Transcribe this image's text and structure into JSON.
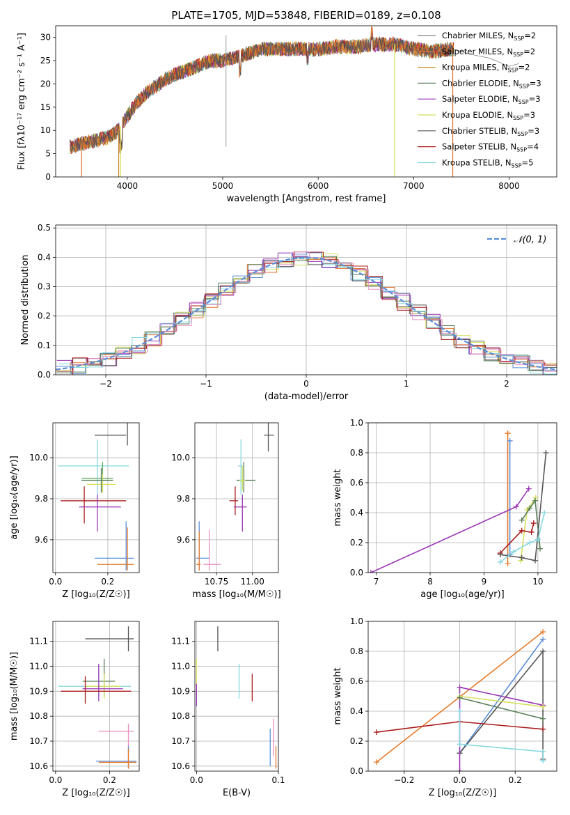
{
  "colors": {
    "Chabrier MILES": "#808080",
    "Salpeter MILES": "#e0712c",
    "Kroupa MILES": "#c98a2a",
    "Chabrier ELODIE": "#5a7f5a",
    "Salpeter ELODIE": "#9a36b5",
    "Kroupa ELODIE": "#d5e05a",
    "Chabrier STELIB": "#555555",
    "Salpeter STELIB": "#aa1a1a",
    "Kroupa STELIB": "#86d8e0",
    "blue": "#5b8ed6",
    "pink": "#e88fc0",
    "green": "#5fa95f",
    "orange": "#e57a2a"
  },
  "chart_data": [
    {
      "id": "spectrum",
      "type": "line",
      "title": "PLATE=1705, MJD=53848, FIBERID=0189, z=0.108",
      "xlabel": "wavelength [Angstrom, rest frame]",
      "ylabel": "Flux [fλ10⁻¹⁷ erg cm⁻² s⁻¹ A⁻¹]",
      "xlim": [
        3250,
        8500
      ],
      "ylim": [
        0,
        32.5
      ],
      "xticks": [
        4000,
        5000,
        6000,
        7000,
        8000
      ],
      "yticks": [
        0,
        5,
        10,
        15,
        20,
        25,
        30
      ],
      "legend_position": "top-right",
      "legend": [
        {
          "label": "Chabrier MILES, N",
          "sub": "SSP",
          "suffix": "=2",
          "color": "#808080"
        },
        {
          "label": "Salpeter MILES, N",
          "sub": "SSP",
          "suffix": "=2",
          "color": "#e0712c"
        },
        {
          "label": "Kroupa MILES, N",
          "sub": "SSP",
          "suffix": "=2",
          "color": "#c98a2a"
        },
        {
          "label": "Chabrier ELODIE, N",
          "sub": "SSP",
          "suffix": "=3",
          "color": "#5a7f5a"
        },
        {
          "label": "Salpeter ELODIE, N",
          "sub": "SSP",
          "suffix": "=3",
          "color": "#9a36b5"
        },
        {
          "label": "Kroupa ELODIE, N",
          "sub": "SSP",
          "suffix": "=3",
          "color": "#d5e05a"
        },
        {
          "label": "Chabrier STELIB, N",
          "sub": "SSP",
          "suffix": "=3",
          "color": "#555555"
        },
        {
          "label": "Salpeter STELIB, N",
          "sub": "SSP",
          "suffix": "=4",
          "color": "#aa1a1a"
        },
        {
          "label": "Kroupa STELIB, N",
          "sub": "SSP",
          "suffix": "=5",
          "color": "#86d8e0"
        }
      ],
      "continuum": [
        [
          3400,
          6.5
        ],
        [
          3600,
          7.5
        ],
        [
          3800,
          8.5
        ],
        [
          3900,
          10
        ],
        [
          4000,
          13
        ],
        [
          4100,
          16
        ],
        [
          4200,
          18
        ],
        [
          4300,
          19.5
        ],
        [
          4400,
          21
        ],
        [
          4500,
          22
        ],
        [
          4700,
          23.5
        ],
        [
          4800,
          24.5
        ],
        [
          4900,
          25
        ],
        [
          5000,
          25
        ],
        [
          5100,
          25.5
        ],
        [
          5200,
          26
        ],
        [
          5400,
          27.5
        ],
        [
          5600,
          27.5
        ],
        [
          5800,
          27.5
        ],
        [
          6000,
          27.5
        ],
        [
          6200,
          28
        ],
        [
          6400,
          28
        ],
        [
          6600,
          28.5
        ],
        [
          6800,
          28.5
        ],
        [
          7000,
          27.5
        ],
        [
          7200,
          27
        ],
        [
          7400,
          27.5
        ]
      ],
      "tail": [
        [
          7400,
          27.5
        ],
        [
          7600,
          26.5
        ],
        [
          7800,
          26
        ],
        [
          8000,
          24
        ],
        [
          8100,
          24.5
        ]
      ],
      "dips": [
        {
          "x": 3520,
          "color": "#e0712c"
        },
        {
          "x": 3910,
          "color": "#c98a2a"
        },
        {
          "x": 3930,
          "color": "#d5e05a"
        },
        {
          "x": 6800,
          "color": "#d5e05a"
        },
        {
          "x": 7410,
          "color": "#e0712c"
        }
      ],
      "spike": {
        "x": 5035,
        "low": 6.5,
        "high": 30.5
      }
    },
    {
      "id": "residuals",
      "type": "line",
      "xlabel": "(data-model)/error",
      "ylabel": "Normed distribution",
      "xlim": [
        -2.5,
        2.5
      ],
      "ylim": [
        0,
        0.51
      ],
      "xticks": [
        -2,
        -1,
        0,
        1,
        2
      ],
      "xtick_labels": [
        "−2",
        "−1",
        "0",
        "1",
        "2"
      ],
      "yticks": [
        0.0,
        0.1,
        0.2,
        0.3,
        0.4,
        0.5
      ],
      "ytick_labels": [
        "0.0",
        "0.1",
        "0.2",
        "0.3",
        "0.4",
        "0.5"
      ],
      "legend_position": "top-right",
      "legend_label": "𝒩(0, 1)",
      "bins": 50,
      "hist_colors": [
        "#e0712c",
        "#5b8ed6",
        "#5a7f5a",
        "#9a36b5",
        "#d5e05a",
        "#555555",
        "#aa1a1a",
        "#86d8e0",
        "#e88fc0"
      ]
    },
    {
      "id": "age-vs-Z",
      "type": "scatter",
      "xlabel": "Z [log₁₀(Z/Z☉)]",
      "ylabel": "age  [log₁₀(age/yr)]",
      "xlim": [
        -0.01,
        0.32
      ],
      "ylim": [
        9.44,
        10.17
      ],
      "xticks": [
        0.0,
        0.2
      ],
      "xtick_labels": [
        "0.0",
        "0.2"
      ],
      "yticks": [
        9.6,
        9.8,
        10.0
      ],
      "ytick_labels": [
        "9.6",
        "9.8",
        "10.0"
      ],
      "points": [
        {
          "x": 0.275,
          "y": 10.11,
          "xerr": [
            0.15,
            0.27
          ],
          "yerr": [
            10.06,
            10.17
          ],
          "color": "#555555"
        },
        {
          "x": 0.16,
          "y": 9.96,
          "xerr": [
            0.01,
            0.28
          ],
          "yerr": [
            9.82,
            10.09
          ],
          "color": "#86d8e0"
        },
        {
          "x": 0.18,
          "y": 9.9,
          "xerr": [
            0.1,
            0.22
          ],
          "yerr": [
            9.83,
            9.98
          ],
          "color": "#5fa95f"
        },
        {
          "x": 0.18,
          "y": 9.87,
          "xerr": [
            0.12,
            0.23
          ],
          "yerr": [
            9.83,
            9.92
          ],
          "color": "#d5e05a"
        },
        {
          "x": 0.175,
          "y": 9.89,
          "xerr": [
            0.1,
            0.22
          ],
          "yerr": [
            9.83,
            9.95
          ],
          "color": "#5a7f5a"
        },
        {
          "x": 0.11,
          "y": 9.79,
          "xerr": [
            0.02,
            0.27
          ],
          "yerr": [
            9.68,
            9.86
          ],
          "color": "#aa1a1a"
        },
        {
          "x": 0.16,
          "y": 9.76,
          "xerr": [
            0.09,
            0.25
          ],
          "yerr": [
            9.64,
            9.82
          ],
          "color": "#9a36b5"
        },
        {
          "x": 0.27,
          "y": 9.51,
          "xerr": [
            0.15,
            0.3
          ],
          "yerr": [
            9.45,
            9.69
          ],
          "color": "#5b8ed6"
        },
        {
          "x": 0.275,
          "y": 9.48,
          "xerr": [
            0.16,
            0.3
          ],
          "yerr": [
            9.45,
            9.66
          ],
          "color": "#e57a2a"
        }
      ]
    },
    {
      "id": "age-vs-mass",
      "type": "scatter",
      "xlabel": "mass [log₁₀(M/M☉)]",
      "ylabel": "",
      "xlim": [
        10.6,
        11.18
      ],
      "ylim": [
        9.44,
        10.17
      ],
      "xticks": [
        10.75,
        11.0
      ],
      "xtick_labels": [
        "10.75",
        "11.00"
      ],
      "yticks": [
        9.6,
        9.8,
        10.0
      ],
      "ytick_labels": [
        "9.6",
        "9.8",
        "10.0"
      ],
      "points": [
        {
          "x": 11.11,
          "y": 10.11,
          "xerr": [
            11.08,
            11.15
          ],
          "yerr": [
            10.03,
            10.17
          ],
          "color": "#555555"
        },
        {
          "x": 10.92,
          "y": 9.96,
          "xerr": [
            10.9,
            10.93
          ],
          "yerr": [
            9.82,
            10.09
          ],
          "color": "#86d8e0"
        },
        {
          "x": 10.94,
          "y": 9.89,
          "xerr": [
            10.89,
            11.02
          ],
          "yerr": [
            9.83,
            9.98
          ],
          "color": "#5a7f5a"
        },
        {
          "x": 10.93,
          "y": 9.89,
          "xerr": [
            10.91,
            10.95
          ],
          "yerr": [
            9.84,
            9.96
          ],
          "color": "#d5e05a"
        },
        {
          "x": 10.88,
          "y": 9.79,
          "xerr": [
            10.84,
            10.9
          ],
          "yerr": [
            9.72,
            9.86
          ],
          "color": "#aa1a1a"
        },
        {
          "x": 10.93,
          "y": 9.76,
          "xerr": [
            10.87,
            10.96
          ],
          "yerr": [
            9.64,
            9.82
          ],
          "color": "#9a36b5"
        },
        {
          "x": 10.63,
          "y": 9.51,
          "xerr": [
            10.61,
            10.7
          ],
          "yerr": [
            9.45,
            9.69
          ],
          "color": "#5b8ed6"
        },
        {
          "x": 10.7,
          "y": 9.48,
          "xerr": [
            10.66,
            10.78
          ],
          "yerr": [
            9.45,
            9.65
          ],
          "color": "#e88fc0"
        },
        {
          "x": 10.63,
          "y": 9.48,
          "xerr": [
            10.61,
            10.64
          ],
          "yerr": [
            9.45,
            9.64
          ],
          "color": "#e57a2a"
        }
      ]
    },
    {
      "id": "weight-vs-age",
      "type": "line",
      "xlabel": "age  [log₁₀(age/yr)]",
      "ylabel": "mass weight",
      "xlim": [
        6.85,
        10.35
      ],
      "ylim": [
        0,
        1.0
      ],
      "xticks": [
        7,
        8,
        9,
        10
      ],
      "yticks": [
        0.0,
        0.2,
        0.4,
        0.6,
        0.8,
        1.0
      ],
      "ytick_labels": [
        "0.0",
        "0.2",
        "0.4",
        "0.6",
        "0.8",
        "1.0"
      ],
      "series": [
        {
          "color": "#e57a2a",
          "x": [
            9.44,
            9.44,
            9.44
          ],
          "y": [
            0.93,
            0.06,
            0.93
          ]
        },
        {
          "color": "#5b8ed6",
          "x": [
            9.48,
            9.48
          ],
          "y": [
            0.88,
            0.12
          ]
        },
        {
          "color": "#9a36b5",
          "x": [
            6.9,
            9.6,
            9.83
          ],
          "y": [
            0.0,
            0.44,
            0.56
          ]
        },
        {
          "color": "#d5e05a",
          "x": [
            9.68,
            9.8,
            9.96
          ],
          "y": [
            0.08,
            0.42,
            0.5
          ]
        },
        {
          "color": "#5a7f5a",
          "x": [
            9.7,
            9.85,
            9.95,
            10.04
          ],
          "y": [
            0.35,
            0.43,
            0.48,
            0.16
          ]
        },
        {
          "color": "#aa1a1a",
          "x": [
            9.3,
            9.7,
            9.88,
            9.92
          ],
          "y": [
            0.13,
            0.28,
            0.27,
            0.33
          ]
        },
        {
          "color": "#555555",
          "x": [
            9.3,
            9.7,
            9.95,
            10.15
          ],
          "y": [
            0.12,
            0.1,
            0.08,
            0.8
          ]
        },
        {
          "color": "#86d8e0",
          "x": [
            9.3,
            9.55,
            9.85,
            10.0,
            10.12
          ],
          "y": [
            0.07,
            0.14,
            0.2,
            0.22,
            0.4
          ]
        }
      ]
    },
    {
      "id": "mass-vs-Z",
      "type": "scatter",
      "xlabel": "Z [log₁₀(Z/Z☉)]",
      "ylabel": "mass [log₁₀(M/M☉)]",
      "xlim": [
        -0.01,
        0.31
      ],
      "ylim": [
        10.58,
        11.18
      ],
      "xticks": [
        0.0,
        0.2
      ],
      "xtick_labels": [
        "0.0",
        "0.2"
      ],
      "yticks": [
        10.6,
        10.7,
        10.8,
        10.9,
        11.0,
        11.1
      ],
      "ytick_labels": [
        "10.6",
        "10.7",
        "10.8",
        "10.9",
        "11.0",
        "11.1"
      ],
      "points": [
        {
          "x": 0.27,
          "y": 11.11,
          "xerr": [
            0.11,
            0.29
          ],
          "yerr": [
            11.06,
            11.16
          ],
          "color": "#555555"
        },
        {
          "x": 0.18,
          "y": 10.94,
          "xerr": [
            0.1,
            0.22
          ],
          "yerr": [
            10.88,
            11.03
          ],
          "color": "#5a7f5a"
        },
        {
          "x": 0.16,
          "y": 10.92,
          "xerr": [
            0.01,
            0.28
          ],
          "yerr": [
            10.88,
            11.0
          ],
          "color": "#86d8e0"
        },
        {
          "x": 0.18,
          "y": 10.92,
          "xerr": [
            0.11,
            0.24
          ],
          "yerr": [
            10.87,
            10.97
          ],
          "color": "#d5e05a"
        },
        {
          "x": 0.16,
          "y": 10.91,
          "xerr": [
            0.1,
            0.25
          ],
          "yerr": [
            10.86,
            11.01
          ],
          "color": "#9a36b5"
        },
        {
          "x": 0.11,
          "y": 10.9,
          "xerr": [
            0.02,
            0.28
          ],
          "yerr": [
            10.85,
            10.96
          ],
          "color": "#aa1a1a"
        },
        {
          "x": 0.27,
          "y": 10.74,
          "xerr": [
            0.16,
            0.29
          ],
          "yerr": [
            10.65,
            10.77
          ],
          "color": "#e88fc0"
        },
        {
          "x": 0.27,
          "y": 10.62,
          "xerr": [
            0.15,
            0.3
          ],
          "yerr": [
            10.59,
            10.68
          ],
          "color": "#5b8ed6"
        },
        {
          "x": 0.27,
          "y": 10.615,
          "xerr": [
            0.16,
            0.3
          ],
          "yerr": [
            10.59,
            10.67
          ],
          "color": "#e57a2a"
        }
      ]
    },
    {
      "id": "mass-vs-EBV",
      "type": "scatter",
      "xlabel": "E(B-V)",
      "ylabel": "",
      "xlim": [
        -0.002,
        0.1
      ],
      "ylim": [
        10.58,
        11.18
      ],
      "xticks": [
        0.0,
        0.1
      ],
      "xtick_labels": [
        "0.0",
        "0.1"
      ],
      "yticks": [
        10.6,
        10.7,
        10.8,
        10.9,
        11.0,
        11.1
      ],
      "ytick_labels": [
        "10.6",
        "10.7",
        "10.8",
        "10.9",
        "11.0",
        "11.1"
      ],
      "points": [
        {
          "x": 0.026,
          "y": 11.11,
          "yerr": [
            11.06,
            11.16
          ],
          "color": "#555555"
        },
        {
          "x": 0.0,
          "y": 10.95,
          "yerr": [
            10.88,
            11.03
          ],
          "color": "#d5e05a"
        },
        {
          "x": 0.0,
          "y": 10.9,
          "yerr": [
            10.84,
            10.93
          ],
          "color": "#9a36b5"
        },
        {
          "x": 0.052,
          "y": 10.94,
          "yerr": [
            10.87,
            11.01
          ],
          "color": "#86d8e0"
        },
        {
          "x": 0.068,
          "y": 10.91,
          "yerr": [
            10.86,
            10.97
          ],
          "color": "#aa1a1a"
        },
        {
          "x": 0.09,
          "y": 10.72,
          "yerr": [
            10.6,
            10.75
          ],
          "color": "#5b8ed6"
        },
        {
          "x": 0.094,
          "y": 10.73,
          "yerr": [
            10.64,
            10.79
          ],
          "color": "#e88fc0"
        },
        {
          "x": 0.097,
          "y": 10.64,
          "yerr": [
            10.59,
            10.68
          ],
          "color": "#e57a2a"
        }
      ]
    },
    {
      "id": "weight-vs-Z",
      "type": "line",
      "xlabel": "Z [log₁₀(Z/Z☉)]",
      "ylabel": "mass weight",
      "xlim": [
        -0.33,
        0.35
      ],
      "ylim": [
        0,
        1.0
      ],
      "xticks": [
        -0.2,
        0.0,
        0.2
      ],
      "xtick_labels": [
        "−0.2",
        "0.0",
        "0.2"
      ],
      "yticks": [
        0.0,
        0.2,
        0.4,
        0.6,
        0.8,
        1.0
      ],
      "ytick_labels": [
        "0.0",
        "0.2",
        "0.4",
        "0.6",
        "0.8",
        "1.0"
      ],
      "series": [
        {
          "color": "#e57a2a",
          "x": [
            -0.3,
            0.3
          ],
          "y": [
            0.06,
            0.93
          ]
        },
        {
          "color": "#5b8ed6",
          "x": [
            0.0,
            0.3
          ],
          "y": [
            0.12,
            0.88
          ]
        },
        {
          "color": "#555555",
          "x": [
            0.0,
            0.3,
            0.3
          ],
          "y": [
            0.12,
            0.8,
            0.08
          ]
        },
        {
          "color": "#aa1a1a",
          "x": [
            -0.3,
            0.0,
            0.3
          ],
          "y": [
            0.26,
            0.33,
            0.28
          ]
        },
        {
          "color": "#9a36b5",
          "x": [
            0.0,
            0.0,
            0.3
          ],
          "y": [
            0.0,
            0.56,
            0.44
          ]
        },
        {
          "color": "#d5e05a",
          "x": [
            0.0,
            0.3
          ],
          "y": [
            0.5,
            0.43
          ]
        },
        {
          "color": "#5a7f5a",
          "x": [
            0.0,
            0.3
          ],
          "y": [
            0.49,
            0.35
          ]
        },
        {
          "color": "#86d8e0",
          "x": [
            0.0,
            0.0,
            0.3,
            0.3
          ],
          "y": [
            0.4,
            0.18,
            0.13,
            0.07
          ]
        }
      ]
    }
  ]
}
